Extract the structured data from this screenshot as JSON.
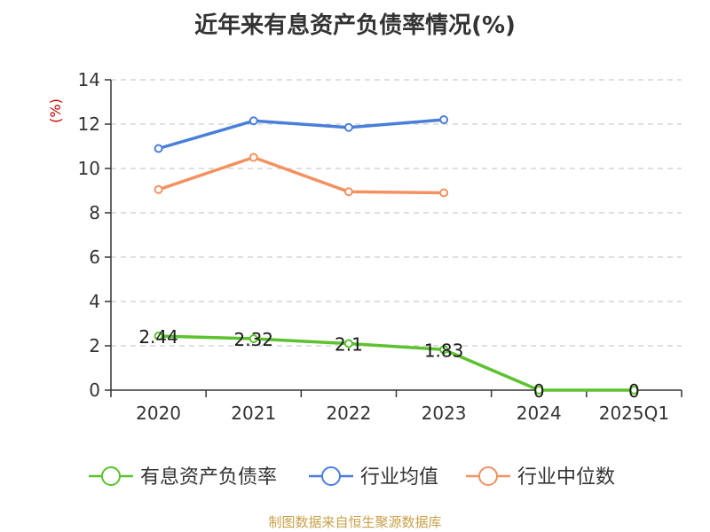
{
  "title": "近年来有息资产负债率情况(%)",
  "source": "制图数据来自恒生聚源数据库",
  "colors": {
    "axis": "#333333",
    "grid": "#cccccc",
    "unit": "#cc0000"
  },
  "chart_data": {
    "type": "line",
    "ylabel": "(%)",
    "ylim": [
      0,
      14
    ],
    "yticks": [
      0,
      2,
      4,
      6,
      8,
      10,
      12,
      14
    ],
    "categories": [
      "2020",
      "2021",
      "2022",
      "2023",
      "2024",
      "2025Q1"
    ],
    "grid": "horizontal-dashed",
    "legend_position": "bottom",
    "series": [
      {
        "name": "有息资产负债率",
        "color": "#5cc22e",
        "values": [
          2.44,
          2.32,
          2.1,
          1.83,
          0,
          0
        ],
        "labels": [
          "2.44",
          "2.32",
          "2.1",
          "1.83",
          "0",
          "0"
        ]
      },
      {
        "name": "行业均值",
        "color": "#4a7fd9",
        "values": [
          10.9,
          12.15,
          11.85,
          12.2,
          null,
          null
        ]
      },
      {
        "name": "行业中位数",
        "color": "#f39161",
        "values": [
          9.05,
          10.5,
          8.95,
          8.9,
          null,
          null
        ]
      }
    ]
  }
}
